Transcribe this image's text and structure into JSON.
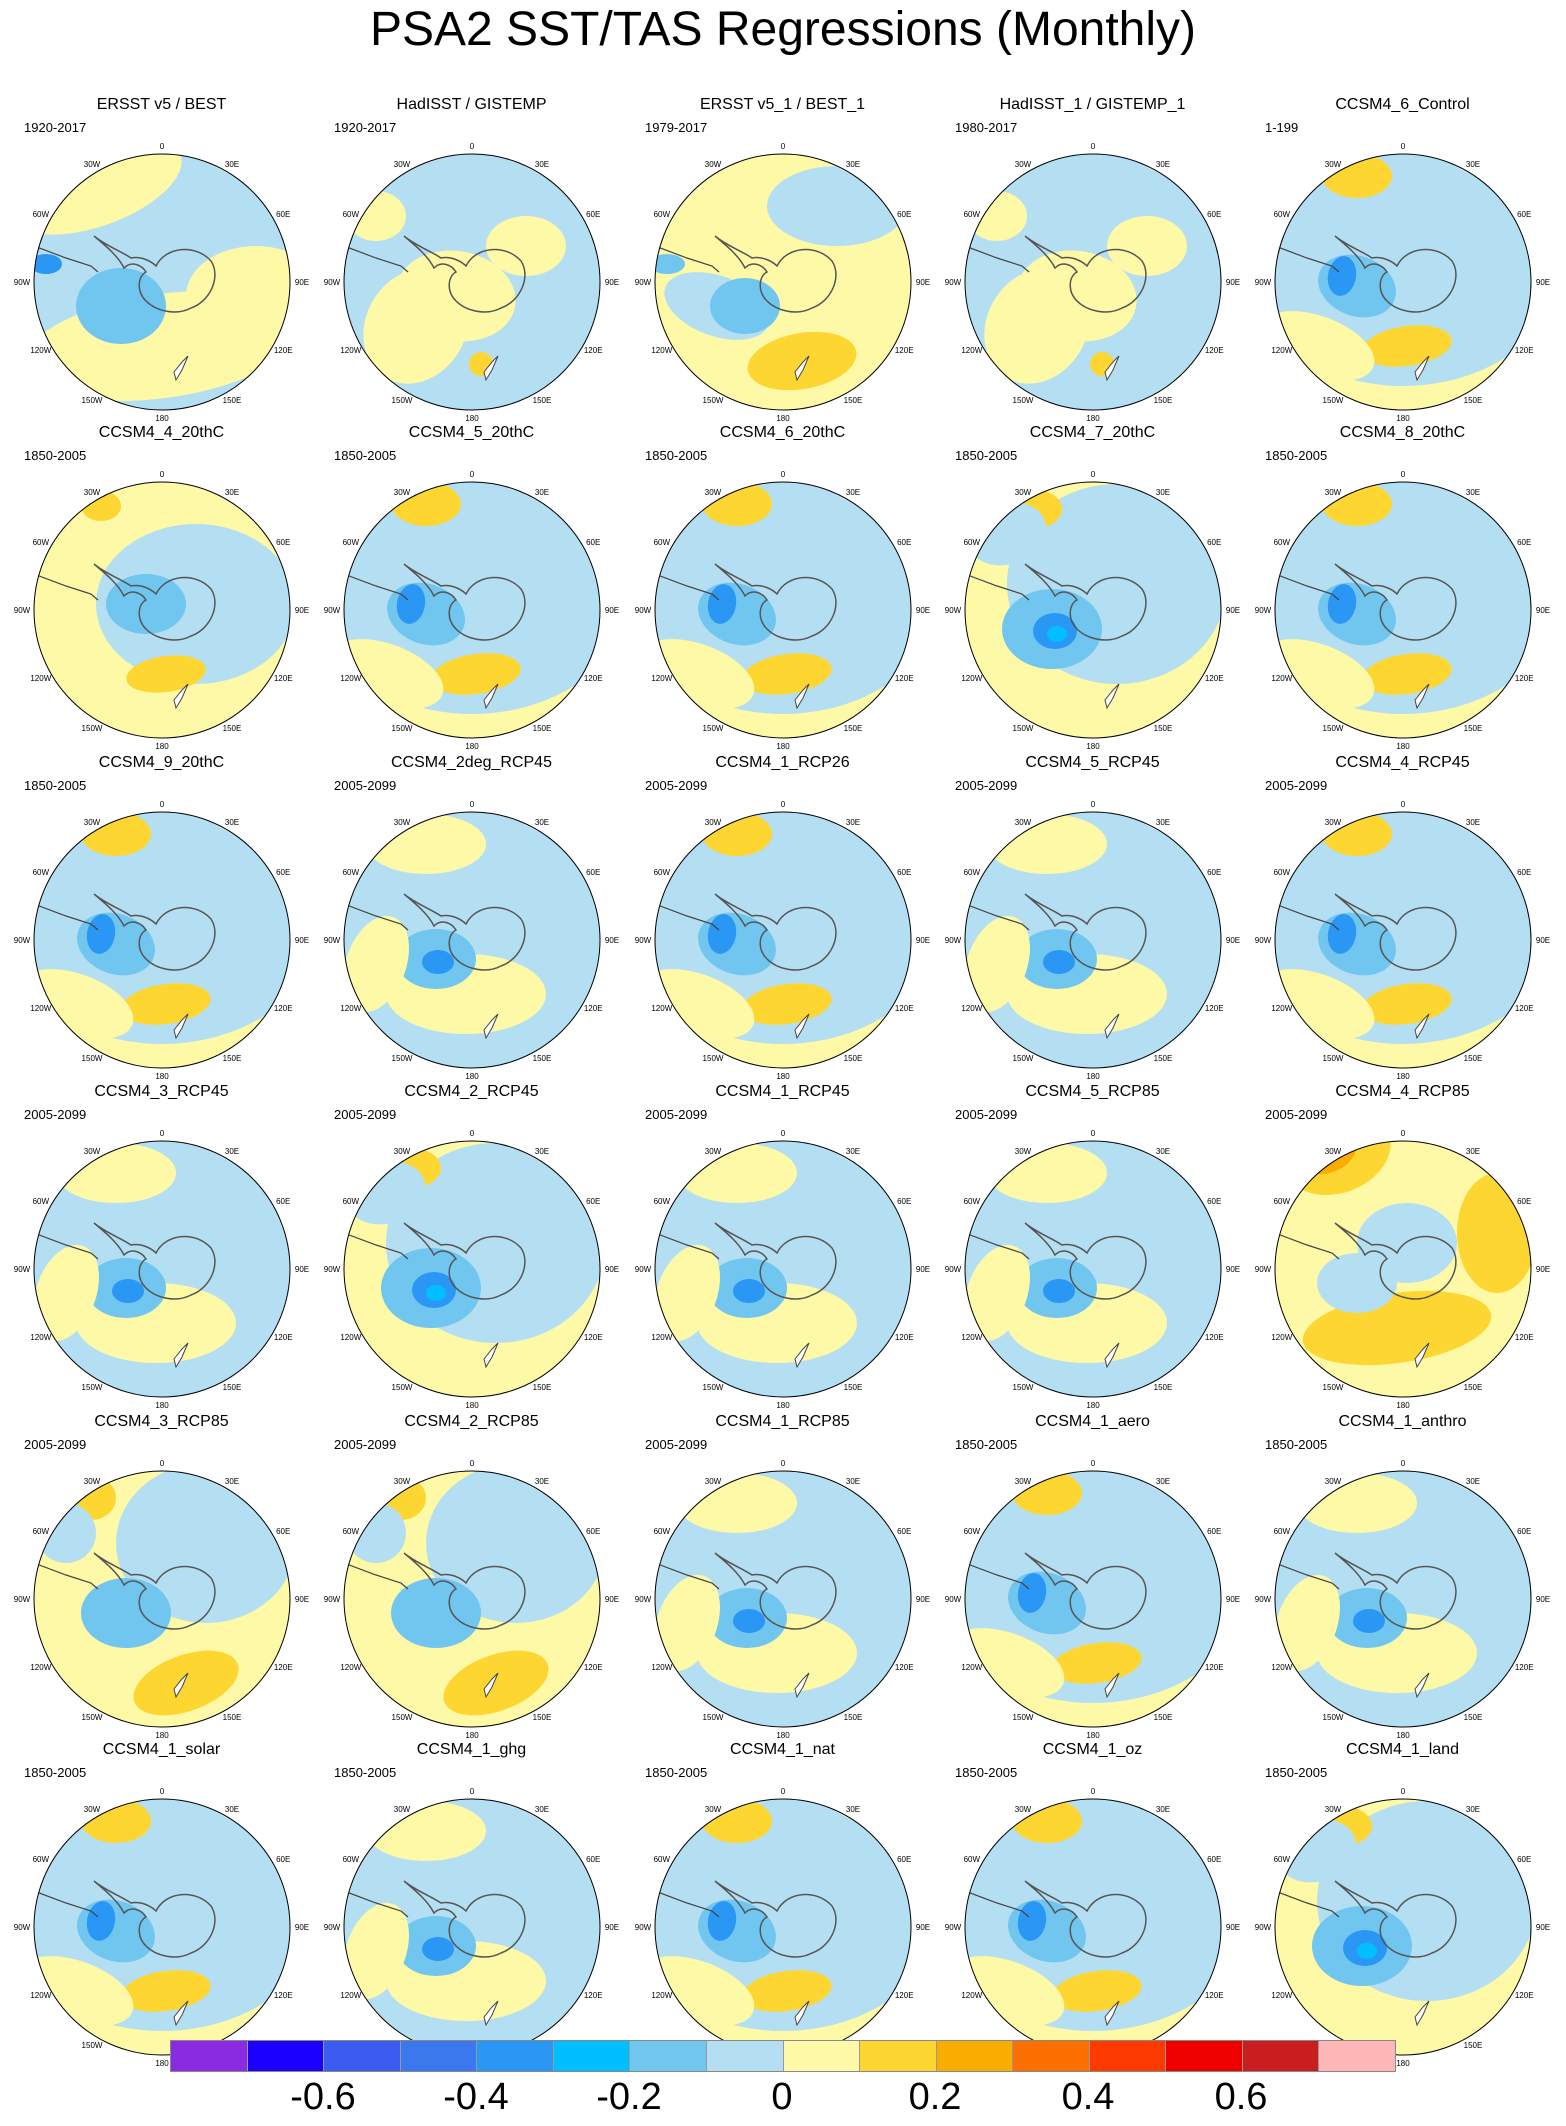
{
  "title": "PSA2 SST/TAS Regressions (Monthly)",
  "map_labels": {
    "lon": [
      "0",
      "30E",
      "60E",
      "90E",
      "120E",
      "150E",
      "180",
      "150W",
      "120W",
      "90W",
      "60W",
      "30W"
    ]
  },
  "panels": [
    {
      "name": "ERSST v5 / BEST",
      "period": "1920-2017",
      "pattern": 0
    },
    {
      "name": "HadISST / GISTEMP",
      "period": "1920-2017",
      "pattern": 1
    },
    {
      "name": "ERSST v5_1 / BEST_1",
      "period": "1979-2017",
      "pattern": 2
    },
    {
      "name": "HadISST_1 / GISTEMP_1",
      "period": "1980-2017",
      "pattern": 1
    },
    {
      "name": "CCSM4_6_Control",
      "period": "1-199",
      "pattern": 3
    },
    {
      "name": "CCSM4_4_20thC",
      "period": "1850-2005",
      "pattern": 4
    },
    {
      "name": "CCSM4_5_20thC",
      "period": "1850-2005",
      "pattern": 3
    },
    {
      "name": "CCSM4_6_20thC",
      "period": "1850-2005",
      "pattern": 3
    },
    {
      "name": "CCSM4_7_20thC",
      "period": "1850-2005",
      "pattern": 5
    },
    {
      "name": "CCSM4_8_20thC",
      "period": "1850-2005",
      "pattern": 3
    },
    {
      "name": "CCSM4_9_20thC",
      "period": "1850-2005",
      "pattern": 3
    },
    {
      "name": "CCSM4_2deg_RCP45",
      "period": "2005-2099",
      "pattern": 6
    },
    {
      "name": "CCSM4_1_RCP26",
      "period": "2005-2099",
      "pattern": 3
    },
    {
      "name": "CCSM4_5_RCP45",
      "period": "2005-2099",
      "pattern": 6
    },
    {
      "name": "CCSM4_4_RCP45",
      "period": "2005-2099",
      "pattern": 3
    },
    {
      "name": "CCSM4_3_RCP45",
      "period": "2005-2099",
      "pattern": 6
    },
    {
      "name": "CCSM4_2_RCP45",
      "period": "2005-2099",
      "pattern": 5
    },
    {
      "name": "CCSM4_1_RCP45",
      "period": "2005-2099",
      "pattern": 6
    },
    {
      "name": "CCSM4_5_RCP85",
      "period": "2005-2099",
      "pattern": 6
    },
    {
      "name": "CCSM4_4_RCP85",
      "period": "2005-2099",
      "pattern": 7
    },
    {
      "name": "CCSM4_3_RCP85",
      "period": "2005-2099",
      "pattern": 8
    },
    {
      "name": "CCSM4_2_RCP85",
      "period": "2005-2099",
      "pattern": 8
    },
    {
      "name": "CCSM4_1_RCP85",
      "period": "2005-2099",
      "pattern": 6
    },
    {
      "name": "CCSM4_1_aero",
      "period": "1850-2005",
      "pattern": 3
    },
    {
      "name": "CCSM4_1_anthro",
      "period": "1850-2005",
      "pattern": 6
    },
    {
      "name": "CCSM4_1_solar",
      "period": "1850-2005",
      "pattern": 3
    },
    {
      "name": "CCSM4_1_ghg",
      "period": "1850-2005",
      "pattern": 6
    },
    {
      "name": "CCSM4_1_nat",
      "period": "1850-2005",
      "pattern": 3
    },
    {
      "name": "CCSM4_1_oz",
      "period": "1850-2005",
      "pattern": 3
    },
    {
      "name": "CCSM4_1_land",
      "period": "1850-2005",
      "pattern": 5
    }
  ],
  "colorbar": {
    "colors": [
      "#8a2be2",
      "#1a00ff",
      "#3a5cf0",
      "#3b78ee",
      "#2a97f5",
      "#00bfff",
      "#71c6f0",
      "#b4dff3",
      "#fef9a6",
      "#fdd632",
      "#fbac00",
      "#fb7000",
      "#fd3a00",
      "#ee0000",
      "#c81e1e",
      "#ffb6b6"
    ],
    "labels": [
      "-0.6",
      "-0.4",
      "-0.2",
      "0",
      "0.2",
      "0.4",
      "0.6"
    ]
  }
}
